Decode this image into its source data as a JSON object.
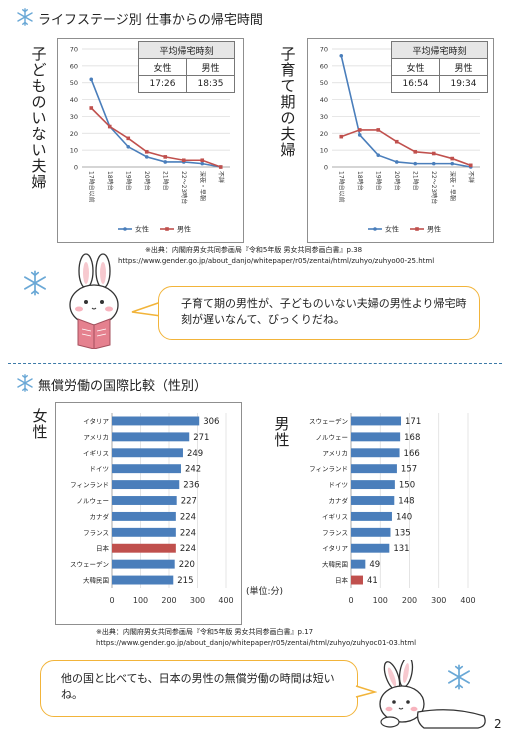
{
  "section1": {
    "title": "ライフステージ別 仕事からの帰宅時間",
    "left_chart": {
      "side_label": "子どものいない夫婦",
      "table": {
        "title": "平均帰宅時刻",
        "female_label": "女性",
        "male_label": "男性",
        "female_value": "17:26",
        "male_value": "18:35"
      }
    },
    "right_chart": {
      "side_label": "子育て期の夫婦",
      "table": {
        "title": "平均帰宅時刻",
        "female_label": "女性",
        "male_label": "男性",
        "female_value": "16:54",
        "male_value": "19:34"
      }
    },
    "source_line1": "※出典：内閣府男女共同参画局『令和5年版 男女共同参画白書』p.38",
    "source_line2": "https://www.gender.go.jp/about_danjo/whitepaper/r05/zentai/html/zuhyo/zuhyo00-25.html",
    "bubble_text": "子育て期の男性が、子どものいない夫婦の男性より帰宅時刻が遅いなんて、びっくりだね。"
  },
  "section2": {
    "title": "無償労働の国際比較（性別）",
    "female_label": "女性",
    "male_label": "男性",
    "unit": "(単位:分)",
    "source_line1": "※出典：内閣府男女共同参画局『令和5年版 男女共同参画白書』p.17",
    "source_line2": "https://www.gender.go.jp/about_danjo/whitepaper/r05/zentai/html/zuhyo/zuhyoc01-03.html",
    "bubble_text": "他の国と比べても、日本の男性の無償労働の時間は短いね。"
  },
  "page_number": "2",
  "colors": {
    "female": "#4a7ebb",
    "male": "#c0504d",
    "japan_bar": "#c0504d",
    "bar": "#4a7ebb",
    "bubble_border": "#f2b43a",
    "divider": "#3d7aa8",
    "flake": "#6aa8d6"
  },
  "chart_data": [
    {
      "type": "line",
      "categories": [
        "17時台以前",
        "18時台",
        "19時台",
        "20時台",
        "21時台",
        "22〜23時台",
        "深夜・早朝",
        "不詳"
      ],
      "series": [
        {
          "name": "女性",
          "values": [
            52,
            24,
            12,
            6,
            3,
            3,
            2,
            0
          ]
        },
        {
          "name": "男性",
          "values": [
            35,
            24,
            17,
            9,
            6,
            4,
            4,
            0
          ]
        }
      ],
      "ylim": [
        0,
        70
      ],
      "yticks": [
        0,
        10,
        20,
        30,
        40,
        50,
        60,
        70
      ],
      "grid": true,
      "legend": "bottom"
    },
    {
      "type": "line",
      "categories": [
        "17時台以前",
        "18時台",
        "19時台",
        "20時台",
        "21時台",
        "22〜23時台",
        "深夜・早朝",
        "不詳"
      ],
      "series": [
        {
          "name": "女性",
          "values": [
            66,
            19,
            7,
            3,
            2,
            2,
            2,
            0
          ]
        },
        {
          "name": "男性",
          "values": [
            18,
            22,
            22,
            15,
            9,
            8,
            5,
            1
          ]
        }
      ],
      "ylim": [
        0,
        70
      ],
      "yticks": [
        0,
        10,
        20,
        30,
        40,
        50,
        60,
        70
      ],
      "grid": true,
      "legend": "bottom"
    },
    {
      "type": "bar",
      "orientation": "horizontal",
      "categories": [
        "イタリア",
        "アメリカ",
        "イギリス",
        "ドイツ",
        "フィンランド",
        "ノルウェー",
        "カナダ",
        "フランス",
        "日本",
        "スウェーデン",
        "大韓民国"
      ],
      "values": [
        306,
        271,
        249,
        242,
        236,
        227,
        224,
        224,
        224,
        220,
        215
      ],
      "highlight": "日本",
      "xlim": [
        0,
        400
      ],
      "xticks": [
        0,
        100,
        200,
        300,
        400
      ]
    },
    {
      "type": "bar",
      "orientation": "horizontal",
      "categories": [
        "スウェーデン",
        "ノルウェー",
        "アメリカ",
        "フィンランド",
        "ドイツ",
        "カナダ",
        "イギリス",
        "フランス",
        "イタリア",
        "大韓民国",
        "日本"
      ],
      "values": [
        171,
        168,
        166,
        157,
        150,
        148,
        140,
        135,
        131,
        49,
        41
      ],
      "highlight": "日本",
      "xlim": [
        0,
        400
      ],
      "xticks": [
        0,
        100,
        200,
        300,
        400
      ]
    }
  ]
}
